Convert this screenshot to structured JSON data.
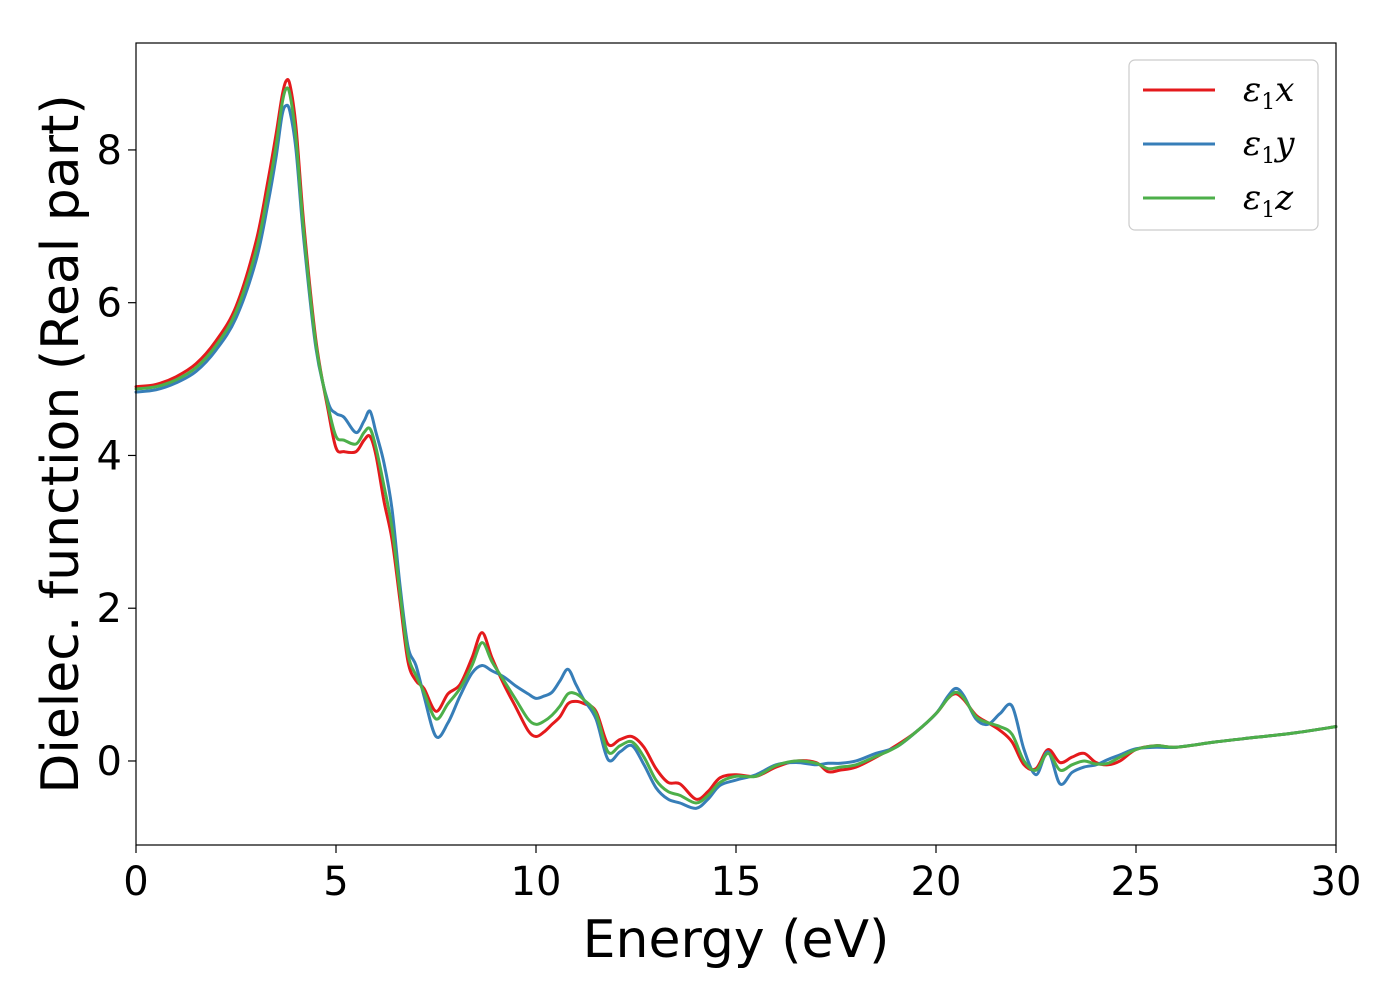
{
  "chart_data": {
    "type": "line",
    "title": "",
    "xlabel": "Energy (eV)",
    "ylabel": "Dielec. function (Real part)",
    "xlim": [
      0,
      30
    ],
    "ylim": [
      -1.1,
      9.4
    ],
    "xticks": [
      0,
      5,
      10,
      15,
      20,
      25,
      30
    ],
    "yticks": [
      0,
      2,
      4,
      6,
      8
    ],
    "grid": false,
    "legend_position": "top-right",
    "series": [
      {
        "name": "ε1x",
        "symbol": "ε",
        "subscript": "1",
        "axis": "x",
        "color": "#e41a1c",
        "x": [
          0,
          0.5,
          1,
          1.5,
          2,
          2.5,
          3,
          3.3,
          3.5,
          3.65,
          3.75,
          3.85,
          4,
          4.2,
          4.5,
          4.8,
          5,
          5.2,
          5.5,
          5.7,
          5.85,
          6,
          6.2,
          6.4,
          6.6,
          6.8,
          7,
          7.2,
          7.5,
          7.8,
          8.1,
          8.4,
          8.65,
          8.9,
          9.2,
          9.5,
          9.8,
          10,
          10.2,
          10.4,
          10.6,
          10.8,
          11,
          11.2,
          11.5,
          11.8,
          12.1,
          12.4,
          12.7,
          13,
          13.3,
          13.6,
          14,
          14.3,
          14.6,
          15,
          15.5,
          16,
          16.5,
          17,
          17.3,
          17.6,
          18,
          18.5,
          19,
          19.5,
          20,
          20.3,
          20.5,
          20.7,
          21,
          21.3,
          21.6,
          21.9,
          22.2,
          22.5,
          22.8,
          23.1,
          23.4,
          23.7,
          24,
          24.3,
          24.6,
          25,
          25.5,
          26,
          27,
          28,
          29,
          30
        ],
        "y": [
          4.9,
          4.93,
          5.03,
          5.2,
          5.5,
          5.95,
          6.8,
          7.6,
          8.2,
          8.7,
          8.9,
          8.85,
          8.3,
          7.0,
          5.5,
          4.6,
          4.1,
          4.05,
          4.05,
          4.2,
          4.25,
          4.0,
          3.4,
          2.9,
          2.1,
          1.3,
          1.05,
          0.95,
          0.65,
          0.88,
          1.0,
          1.35,
          1.68,
          1.35,
          1.0,
          0.7,
          0.4,
          0.32,
          0.38,
          0.48,
          0.58,
          0.75,
          0.78,
          0.75,
          0.65,
          0.22,
          0.28,
          0.32,
          0.18,
          -0.1,
          -0.28,
          -0.3,
          -0.5,
          -0.4,
          -0.22,
          -0.18,
          -0.2,
          -0.08,
          0,
          -0.02,
          -0.14,
          -0.12,
          -0.08,
          0.05,
          0.2,
          0.38,
          0.62,
          0.82,
          0.88,
          0.8,
          0.6,
          0.5,
          0.4,
          0.25,
          -0.05,
          -0.1,
          0.15,
          -0.02,
          0.05,
          0.1,
          -0.02,
          -0.05,
          0.0,
          0.15,
          0.2,
          0.18,
          0.25,
          0.31,
          0.37,
          0.45
        ]
      },
      {
        "name": "ε1y",
        "symbol": "ε",
        "subscript": "1",
        "axis": "y",
        "color": "#377eb8",
        "x": [
          0,
          0.5,
          1,
          1.5,
          2,
          2.5,
          3,
          3.3,
          3.5,
          3.65,
          3.75,
          3.85,
          4,
          4.2,
          4.5,
          4.8,
          5,
          5.2,
          5.5,
          5.7,
          5.85,
          6,
          6.2,
          6.4,
          6.6,
          6.8,
          7,
          7.2,
          7.5,
          7.8,
          8.1,
          8.4,
          8.65,
          8.9,
          9.2,
          9.5,
          9.8,
          10,
          10.2,
          10.4,
          10.6,
          10.8,
          11,
          11.2,
          11.5,
          11.8,
          12.1,
          12.4,
          12.7,
          13,
          13.3,
          13.6,
          14,
          14.3,
          14.6,
          15,
          15.5,
          16,
          16.5,
          17,
          17.3,
          17.6,
          18,
          18.5,
          19,
          19.5,
          20,
          20.3,
          20.5,
          20.7,
          21,
          21.3,
          21.6,
          21.9,
          22.2,
          22.5,
          22.8,
          23.1,
          23.4,
          23.7,
          24,
          24.3,
          24.6,
          25,
          25.5,
          26,
          27,
          28,
          29,
          30
        ],
        "y": [
          4.83,
          4.86,
          4.95,
          5.1,
          5.38,
          5.8,
          6.55,
          7.3,
          7.9,
          8.45,
          8.58,
          8.5,
          8.0,
          6.8,
          5.4,
          4.7,
          4.55,
          4.5,
          4.3,
          4.45,
          4.58,
          4.3,
          3.9,
          3.3,
          2.3,
          1.5,
          1.25,
          0.85,
          0.32,
          0.5,
          0.85,
          1.15,
          1.25,
          1.18,
          1.1,
          0.98,
          0.88,
          0.82,
          0.85,
          0.9,
          1.05,
          1.2,
          1.0,
          0.8,
          0.55,
          0.02,
          0.12,
          0.2,
          -0.05,
          -0.35,
          -0.5,
          -0.55,
          -0.62,
          -0.5,
          -0.32,
          -0.25,
          -0.18,
          -0.05,
          -0.02,
          -0.05,
          -0.03,
          -0.03,
          0.0,
          0.1,
          0.18,
          0.38,
          0.62,
          0.85,
          0.95,
          0.85,
          0.55,
          0.48,
          0.62,
          0.72,
          0.15,
          -0.18,
          0.12,
          -0.3,
          -0.15,
          -0.08,
          -0.05,
          0.02,
          0.08,
          0.16,
          0.18,
          0.18,
          0.25,
          0.31,
          0.37,
          0.45
        ]
      },
      {
        "name": "ε1z",
        "symbol": "ε",
        "subscript": "1",
        "axis": "z",
        "color": "#4daf4a",
        "x": [
          0,
          0.5,
          1,
          1.5,
          2,
          2.5,
          3,
          3.3,
          3.5,
          3.65,
          3.75,
          3.85,
          4,
          4.2,
          4.5,
          4.8,
          5,
          5.2,
          5.5,
          5.7,
          5.85,
          6,
          6.2,
          6.4,
          6.6,
          6.8,
          7,
          7.2,
          7.5,
          7.8,
          8.1,
          8.4,
          8.65,
          8.9,
          9.2,
          9.5,
          9.8,
          10,
          10.2,
          10.4,
          10.6,
          10.8,
          11,
          11.2,
          11.5,
          11.8,
          12.1,
          12.4,
          12.7,
          13,
          13.3,
          13.6,
          14,
          14.3,
          14.6,
          15,
          15.5,
          16,
          16.5,
          17,
          17.3,
          17.6,
          18,
          18.5,
          19,
          19.5,
          20,
          20.3,
          20.5,
          20.7,
          21,
          21.3,
          21.6,
          21.9,
          22.2,
          22.5,
          22.8,
          23.1,
          23.4,
          23.7,
          24,
          24.3,
          24.6,
          25,
          25.5,
          26,
          27,
          28,
          29,
          30
        ],
        "y": [
          4.87,
          4.9,
          4.99,
          5.15,
          5.44,
          5.88,
          6.68,
          7.45,
          8.05,
          8.6,
          8.8,
          8.72,
          8.15,
          6.9,
          5.45,
          4.65,
          4.25,
          4.2,
          4.15,
          4.3,
          4.35,
          4.1,
          3.6,
          3.05,
          2.2,
          1.4,
          1.12,
          0.9,
          0.55,
          0.75,
          0.95,
          1.25,
          1.55,
          1.3,
          1.05,
          0.8,
          0.55,
          0.48,
          0.52,
          0.6,
          0.72,
          0.88,
          0.88,
          0.8,
          0.62,
          0.12,
          0.2,
          0.25,
          0.05,
          -0.25,
          -0.4,
          -0.45,
          -0.55,
          -0.45,
          -0.28,
          -0.2,
          -0.2,
          -0.06,
          0,
          -0.03,
          -0.1,
          -0.08,
          -0.05,
          0.06,
          0.18,
          0.38,
          0.62,
          0.82,
          0.9,
          0.82,
          0.58,
          0.5,
          0.45,
          0.35,
          0.0,
          -0.12,
          0.1,
          -0.12,
          -0.05,
          0.0,
          -0.04,
          -0.03,
          0.05,
          0.15,
          0.2,
          0.18,
          0.25,
          0.31,
          0.37,
          0.45
        ]
      }
    ]
  }
}
